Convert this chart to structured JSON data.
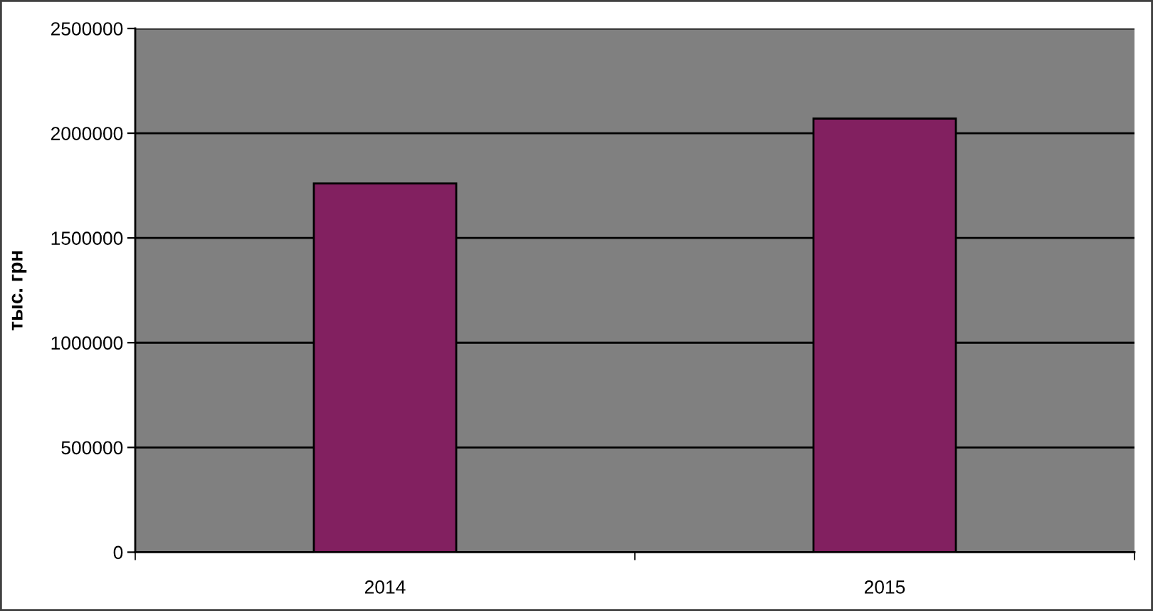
{
  "chart_data": {
    "type": "bar",
    "ylabel": "тыс. грн",
    "categories": [
      "2014",
      "2015"
    ],
    "series": [
      {
        "color": "#822060",
        "values": [
          1760000,
          2070000
        ]
      }
    ],
    "ylim": [
      0,
      2500000
    ],
    "yticks": [
      0,
      500000,
      1000000,
      1500000,
      2000000,
      2500000
    ],
    "grid": "y"
  }
}
